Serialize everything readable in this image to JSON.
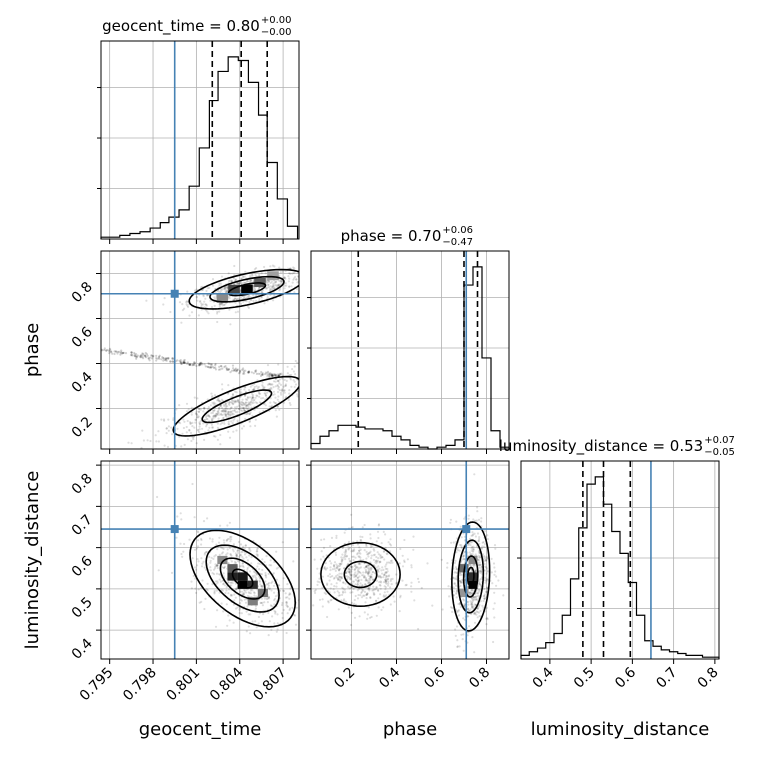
{
  "colors": {
    "truth": "#4682b4",
    "grid": "#b0b0b0",
    "hist": "#000000",
    "density": "#000000"
  },
  "chart_data": {
    "type": "corner",
    "parameters": [
      "geocent_time",
      "phase",
      "luminosity_distance"
    ],
    "truths": {
      "geocent_time": 0.7995,
      "phase": 0.71,
      "luminosity_distance": 0.645
    },
    "titles": [
      {
        "prefix": "geocent_time = 0.80",
        "plus": "+0.00",
        "minus": "−0.00"
      },
      {
        "prefix": "phase = 0.70",
        "plus": "+0.06",
        "minus": "−0.47"
      },
      {
        "prefix": "luminosity_distance = 0.53",
        "plus": "+0.07",
        "minus": "−0.05"
      }
    ],
    "axis_labels": {
      "bottom": [
        "geocent_time",
        "phase",
        "luminosity_distance"
      ],
      "left": [
        "phase",
        "luminosity_distance"
      ]
    },
    "axes": {
      "geocent_time": {
        "range": [
          0.7944,
          0.8081
        ],
        "ticks": [
          0.795,
          0.798,
          0.801,
          0.804,
          0.807
        ],
        "tick_labels": [
          "0.795",
          "0.798",
          "0.801",
          "0.804",
          "0.807"
        ]
      },
      "phase": {
        "range": [
          0.02,
          0.9
        ],
        "ticks": [
          0.2,
          0.4,
          0.6,
          0.8
        ],
        "tick_labels": [
          "0.2",
          "0.4",
          "0.6",
          "0.8"
        ]
      },
      "luminosity_distance": {
        "range": [
          0.33,
          0.81
        ],
        "ticks": [
          0.4,
          0.5,
          0.6,
          0.7,
          0.8
        ],
        "tick_labels": [
          "0.4",
          "0.5",
          "0.6",
          "0.7",
          "0.8"
        ]
      }
    },
    "quantiles": {
      "geocent_time": [
        0.8021,
        0.8041,
        0.8059
      ],
      "phase": [
        0.23,
        0.7,
        0.76
      ],
      "luminosity_distance": [
        0.48,
        0.53,
        0.595
      ]
    },
    "histograms": {
      "geocent_time": {
        "edges": [
          0.7944,
          0.7951,
          0.7957,
          0.7964,
          0.7971,
          0.7978,
          0.7985,
          0.7991,
          0.7998,
          0.8005,
          0.8012,
          0.8019,
          0.8025,
          0.8032,
          0.8039,
          0.8046,
          0.8053,
          0.8059,
          0.8066,
          0.8073,
          0.808
        ],
        "counts": [
          0.01,
          0.01,
          0.02,
          0.03,
          0.04,
          0.06,
          0.09,
          0.12,
          0.16,
          0.29,
          0.5,
          0.76,
          0.92,
          1.0,
          0.98,
          0.86,
          0.68,
          0.42,
          0.22,
          0.07
        ]
      },
      "phase": {
        "edges": [
          0.02,
          0.06,
          0.1,
          0.14,
          0.18,
          0.22,
          0.26,
          0.3,
          0.34,
          0.38,
          0.42,
          0.46,
          0.5,
          0.54,
          0.58,
          0.62,
          0.66,
          0.7,
          0.74,
          0.78,
          0.82,
          0.86,
          0.9
        ],
        "counts": [
          0.03,
          0.07,
          0.1,
          0.13,
          0.13,
          0.12,
          0.11,
          0.11,
          0.1,
          0.07,
          0.05,
          0.02,
          0.01,
          0.0,
          0.01,
          0.02,
          0.05,
          0.9,
          1.0,
          0.5,
          0.1,
          0.01
        ]
      },
      "luminosity_distance": {
        "edges": [
          0.33,
          0.35,
          0.37,
          0.39,
          0.41,
          0.43,
          0.45,
          0.47,
          0.49,
          0.51,
          0.53,
          0.55,
          0.57,
          0.59,
          0.61,
          0.63,
          0.65,
          0.67,
          0.69,
          0.71,
          0.73,
          0.75,
          0.77,
          0.79,
          0.81
        ],
        "counts": [
          0.02,
          0.04,
          0.06,
          0.09,
          0.14,
          0.24,
          0.44,
          0.72,
          0.96,
          1.0,
          0.85,
          0.7,
          0.58,
          0.42,
          0.24,
          0.1,
          0.07,
          0.05,
          0.04,
          0.03,
          0.02,
          0.02,
          0.01,
          0.01
        ]
      }
    },
    "densities": {
      "phase_vs_geocent_time": {
        "x_param": "geocent_time",
        "y_param": "phase",
        "modes": [
          {
            "x": 0.8045,
            "y": 0.73,
            "sx": 0.0016,
            "sy": 0.035,
            "rho": 0.6,
            "level_scales": [
              2.5,
              1.6,
              0.8
            ]
          },
          {
            "x": 0.8038,
            "y": 0.21,
            "sx": 0.002,
            "sy": 0.06,
            "rho": 0.8,
            "level_scales": [
              2.2,
              1.2
            ]
          }
        ],
        "bins": [
          {
            "x": 0.8045,
            "y": 0.73,
            "w": 0.0008,
            "h": 0.04,
            "v": 1.0
          },
          {
            "x": 0.8036,
            "y": 0.73,
            "w": 0.0008,
            "h": 0.04,
            "v": 0.7
          },
          {
            "x": 0.8054,
            "y": 0.76,
            "w": 0.0008,
            "h": 0.04,
            "v": 0.6
          },
          {
            "x": 0.8028,
            "y": 0.69,
            "w": 0.0008,
            "h": 0.04,
            "v": 0.4
          },
          {
            "x": 0.8063,
            "y": 0.79,
            "w": 0.0008,
            "h": 0.04,
            "v": 0.3
          }
        ]
      },
      "luminosity_distance_vs_geocent_time": {
        "x_param": "geocent_time",
        "y_param": "luminosity_distance",
        "modes": [
          {
            "x": 0.8042,
            "y": 0.525,
            "sx": 0.0014,
            "sy": 0.045,
            "rho": -0.5,
            "level_scales": [
              2.6,
              1.8,
              1.1,
              0.5
            ]
          }
        ],
        "bins": [
          {
            "x": 0.8042,
            "y": 0.51,
            "w": 0.0007,
            "h": 0.02,
            "v": 1.0
          },
          {
            "x": 0.8035,
            "y": 0.53,
            "w": 0.0007,
            "h": 0.02,
            "v": 0.85
          },
          {
            "x": 0.8049,
            "y": 0.51,
            "w": 0.0007,
            "h": 0.02,
            "v": 0.8
          },
          {
            "x": 0.8035,
            "y": 0.55,
            "w": 0.0007,
            "h": 0.02,
            "v": 0.6
          },
          {
            "x": 0.8042,
            "y": 0.53,
            "w": 0.0007,
            "h": 0.02,
            "v": 0.9
          },
          {
            "x": 0.8056,
            "y": 0.49,
            "w": 0.0007,
            "h": 0.02,
            "v": 0.5
          },
          {
            "x": 0.8028,
            "y": 0.57,
            "w": 0.0007,
            "h": 0.02,
            "v": 0.4
          },
          {
            "x": 0.8049,
            "y": 0.47,
            "w": 0.0007,
            "h": 0.02,
            "v": 0.45
          }
        ]
      },
      "luminosity_distance_vs_phase": {
        "x_param": "phase",
        "y_param": "luminosity_distance",
        "modes": [
          {
            "x": 0.73,
            "y": 0.53,
            "sx": 0.035,
            "sy": 0.055,
            "rho": 0.1,
            "level_scales": [
              2.4,
              1.6,
              0.9,
              0.4
            ]
          },
          {
            "x": 0.24,
            "y": 0.535,
            "sx": 0.08,
            "sy": 0.035,
            "rho": 0.0,
            "level_scales": [
              2.2,
              0.9
            ]
          }
        ],
        "bins": [
          {
            "x": 0.74,
            "y": 0.51,
            "w": 0.04,
            "h": 0.02,
            "v": 1.0
          },
          {
            "x": 0.74,
            "y": 0.53,
            "w": 0.04,
            "h": 0.02,
            "v": 0.8
          },
          {
            "x": 0.7,
            "y": 0.55,
            "w": 0.04,
            "h": 0.02,
            "v": 0.55
          },
          {
            "x": 0.74,
            "y": 0.57,
            "w": 0.04,
            "h": 0.02,
            "v": 0.4
          },
          {
            "x": 0.7,
            "y": 0.49,
            "w": 0.04,
            "h": 0.02,
            "v": 0.35
          }
        ]
      }
    },
    "phase_ridge": {
      "from": [
        0.7944,
        0.46
      ],
      "to": [
        0.807,
        0.34
      ]
    }
  }
}
